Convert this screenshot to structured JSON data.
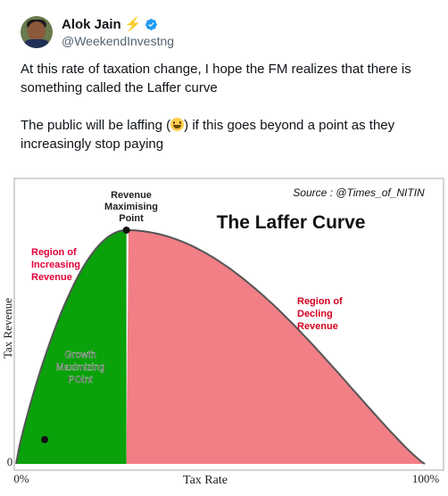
{
  "author": {
    "name": "Alok Jain",
    "badge_icon": "lightning-bolt",
    "verified_icon": "verified-badge",
    "handle": "@WeekendInvestng"
  },
  "tweet": {
    "paragraph1": "At this rate of taxation change, I hope the FM realizes that there is something called the Laffer curve",
    "paragraph2_before": "The public will be laffing (",
    "paragraph2_emoji": "grinning-face",
    "paragraph2_after": ") if this goes beyond a point as they increasingly stop paying"
  },
  "chart_data": {
    "type": "area",
    "title": "The Laffer Curve",
    "source": "Source : @Times_of_NITIN",
    "xlabel": "Tax Rate",
    "ylabel": "Tax Revenue",
    "x_ticks": [
      "0%",
      "100%"
    ],
    "y_ticks": [
      "0"
    ],
    "annotations": {
      "peak": "Revenue Maximising Point",
      "growth": "Growth Maximizing POint",
      "left_region": "Region of Increasing Revenue",
      "right_region": "Region of Decling Revenue"
    },
    "peak_x": 0.27,
    "growth_x": 0.07,
    "colors": {
      "increasing": "#0aa10a",
      "declining": "#f27e86",
      "curve": "#555555"
    }
  }
}
